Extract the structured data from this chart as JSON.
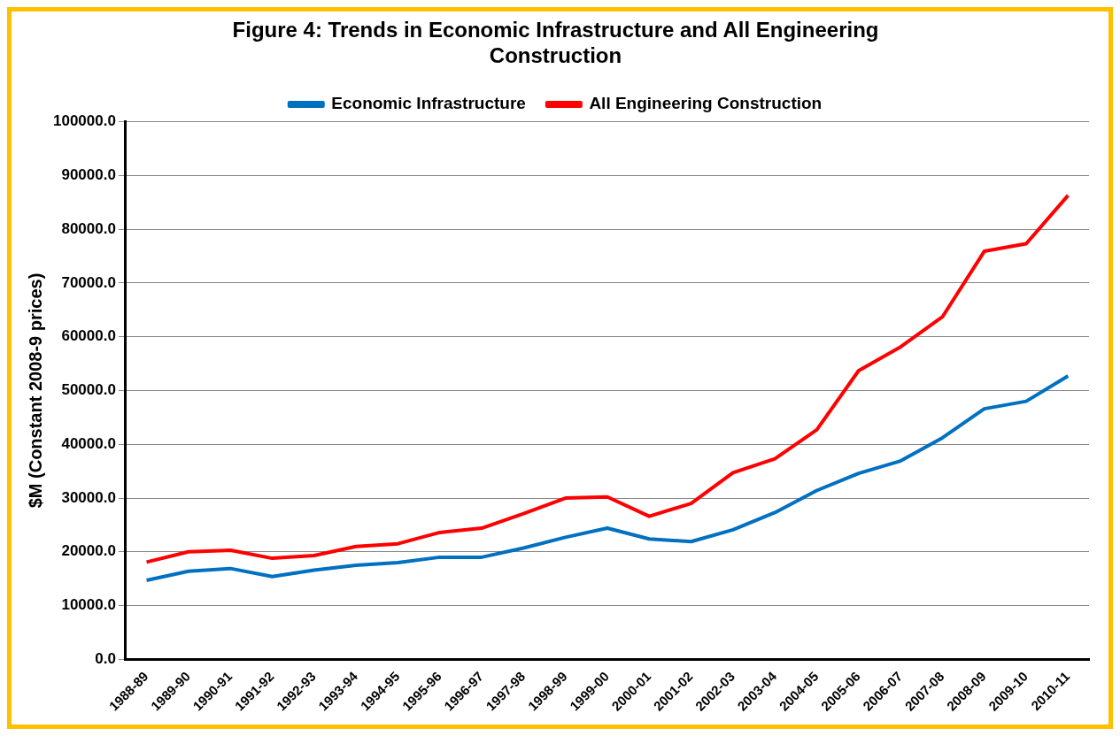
{
  "chart_data": {
    "type": "line",
    "title": "Figure 4: Trends in Economic Infrastructure and All Engineering Construction",
    "ylabel": "$M (Constant 2008-9 prices)",
    "categories": [
      "1988-89",
      "1989-90",
      "1990-91",
      "1991-92",
      "1992-93",
      "1993-94",
      "1994-95",
      "1995-96",
      "1996-97",
      "1997-98",
      "1998-99",
      "1999-00",
      "2000-01",
      "2001-02",
      "2002-03",
      "2003-04",
      "2004-05",
      "2005-06",
      "2006-07",
      "2007-08",
      "2008-09",
      "2009-10",
      "2010-11"
    ],
    "series": [
      {
        "name": "Economic Infrastructure",
        "color": "#0070c0",
        "values": [
          14700,
          16400,
          16900,
          15400,
          16600,
          17500,
          18000,
          19000,
          19000,
          20700,
          22700,
          24400,
          22400,
          21900,
          24100,
          27300,
          31400,
          34600,
          36900,
          41200,
          46600,
          48000,
          52700
        ]
      },
      {
        "name": "All Engineering Construction",
        "color": "#ff0000",
        "values": [
          18100,
          20000,
          20300,
          18800,
          19300,
          21000,
          21500,
          23600,
          24400,
          27100,
          30000,
          30200,
          26600,
          29000,
          34700,
          37300,
          42700,
          53700,
          58100,
          63700,
          75900,
          77300,
          86300
        ]
      }
    ],
    "ylim": [
      0,
      100000
    ],
    "yticks": [
      {
        "value": 0,
        "label": "0.0"
      },
      {
        "value": 10000,
        "label": "10000.0"
      },
      {
        "value": 20000,
        "label": "20000.0"
      },
      {
        "value": 30000,
        "label": "30000.0"
      },
      {
        "value": 40000,
        "label": "40000.0"
      },
      {
        "value": 50000,
        "label": "50000.0"
      },
      {
        "value": 60000,
        "label": "60000.0"
      },
      {
        "value": 70000,
        "label": "70000.0"
      },
      {
        "value": 80000,
        "label": "80000.0"
      },
      {
        "value": 90000,
        "label": "90000.0"
      },
      {
        "value": 100000,
        "label": "100000.0"
      }
    ],
    "grid": "y",
    "legend": "top",
    "marker": "none",
    "line_style": "solid"
  }
}
